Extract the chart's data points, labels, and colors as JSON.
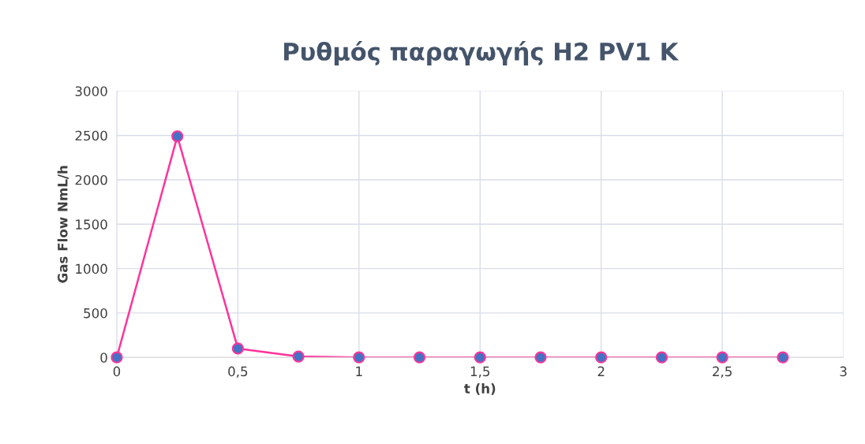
{
  "chart_data": {
    "type": "line",
    "title": "Ρυθμός παραγωγής H2 PV1 K",
    "xlabel": "t (h)",
    "ylabel": "Gas Flow NmL/h",
    "x": [
      0,
      0.25,
      0.5,
      0.75,
      1,
      1.25,
      1.5,
      1.75,
      2,
      2.25,
      2.5,
      2.75
    ],
    "series": [
      {
        "color": "#ff3399",
        "values": [
          0,
          2490,
          100,
          10,
          0,
          0,
          0,
          0,
          0,
          0,
          0,
          0
        ]
      }
    ],
    "xlim": [
      0,
      3
    ],
    "xticks": [
      0,
      {
        "value": 0.5,
        "label": "0,5"
      },
      1,
      {
        "value": 1.5,
        "label": "1,5"
      },
      2,
      {
        "value": 2.5,
        "label": "2,5"
      },
      3
    ],
    "ylim": [
      0,
      3000
    ],
    "yticks": [
      0,
      500,
      1000,
      1500,
      2000,
      2500,
      3000
    ],
    "grid": true,
    "marker": "circle",
    "line_style": "solid"
  }
}
